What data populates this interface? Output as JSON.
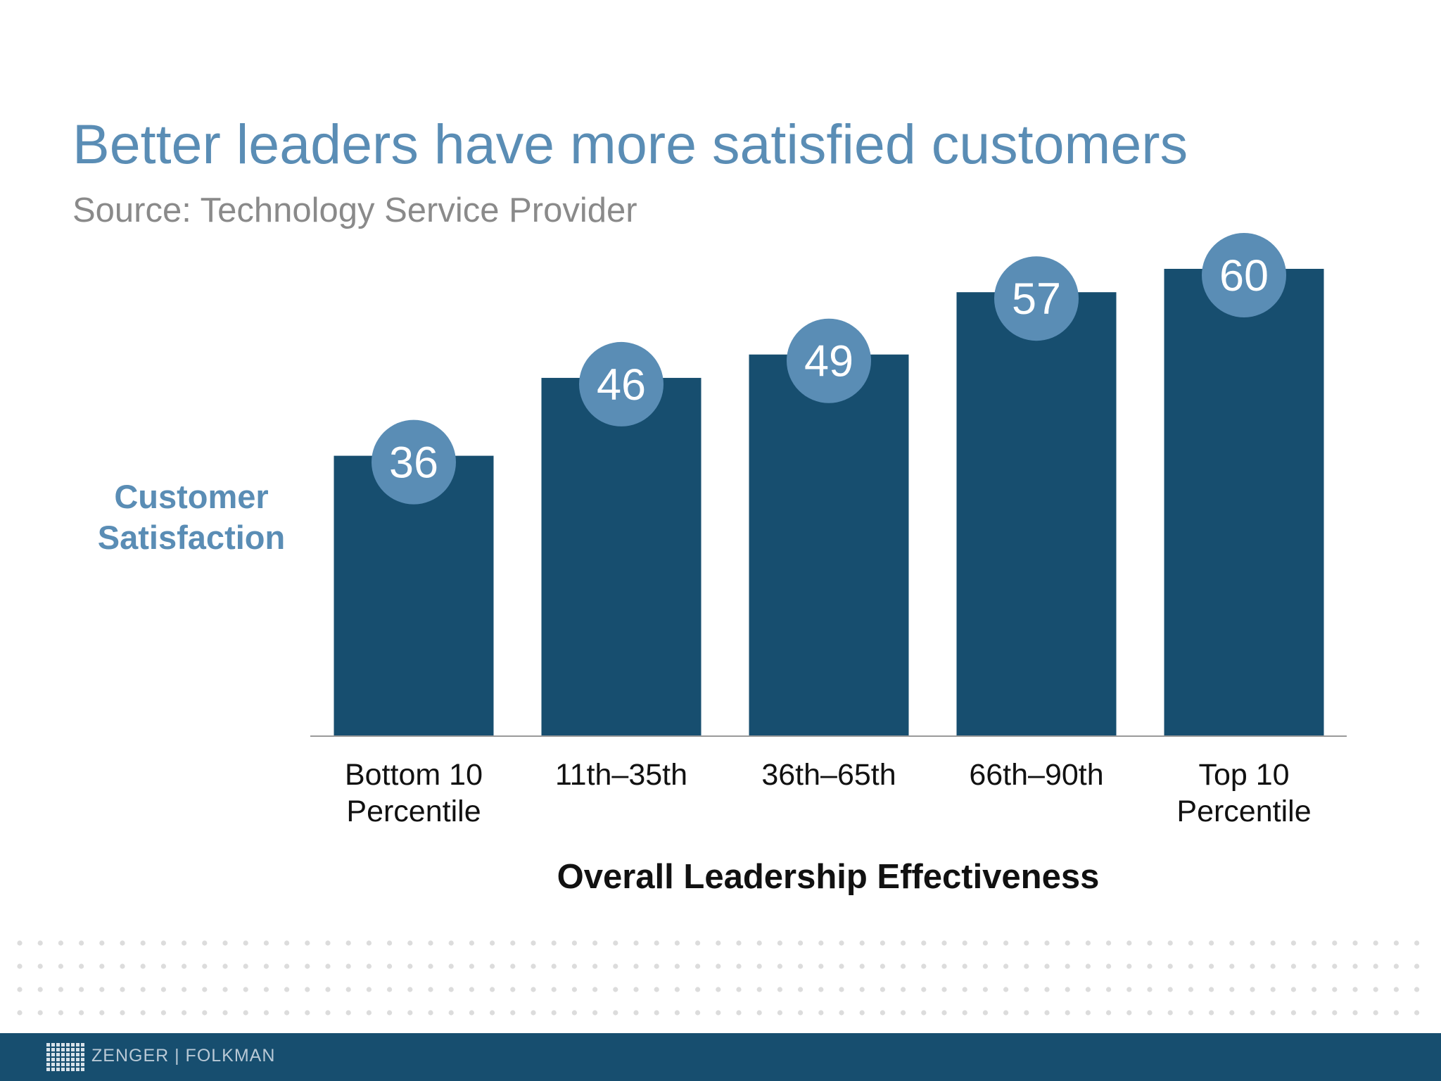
{
  "slide": {
    "title": "Better leaders have more satisfied customers",
    "subtitle": "Source: Technology Service Provider"
  },
  "chart_data": {
    "type": "bar",
    "categories": [
      "Bottom 10 Percentile",
      "11th–35th",
      "36th–65th",
      "66th–90th",
      "Top 10 Percentile"
    ],
    "category_lines": [
      [
        "Bottom 10",
        "Percentile"
      ],
      [
        "11th–35th"
      ],
      [
        "36th–65th"
      ],
      [
        "66th–90th"
      ],
      [
        "Top 10",
        "Percentile"
      ]
    ],
    "values": [
      36,
      46,
      49,
      57,
      60
    ],
    "title": "Better leaders have more satisfied customers",
    "subtitle": "Source: Technology Service Provider",
    "xlabel": "Overall Leadership Effectiveness",
    "ylabel_lines": [
      "Customer",
      "Satisfaction"
    ],
    "ylim": [
      0,
      60
    ],
    "grid": false,
    "legend": "none",
    "data_labels": "circle-badge",
    "colors": {
      "bar": "#174e6f",
      "badge": "#5a8db5",
      "badge_text": "#ffffff",
      "ylabel": "#5a8db5",
      "axis": "#9a9a9a",
      "tick_text": "#111111"
    }
  },
  "footer": {
    "brand": "ZENGER | FOLKMAN",
    "logo_icon": "zf-grid-logo-icon",
    "background": "#174e6f"
  }
}
